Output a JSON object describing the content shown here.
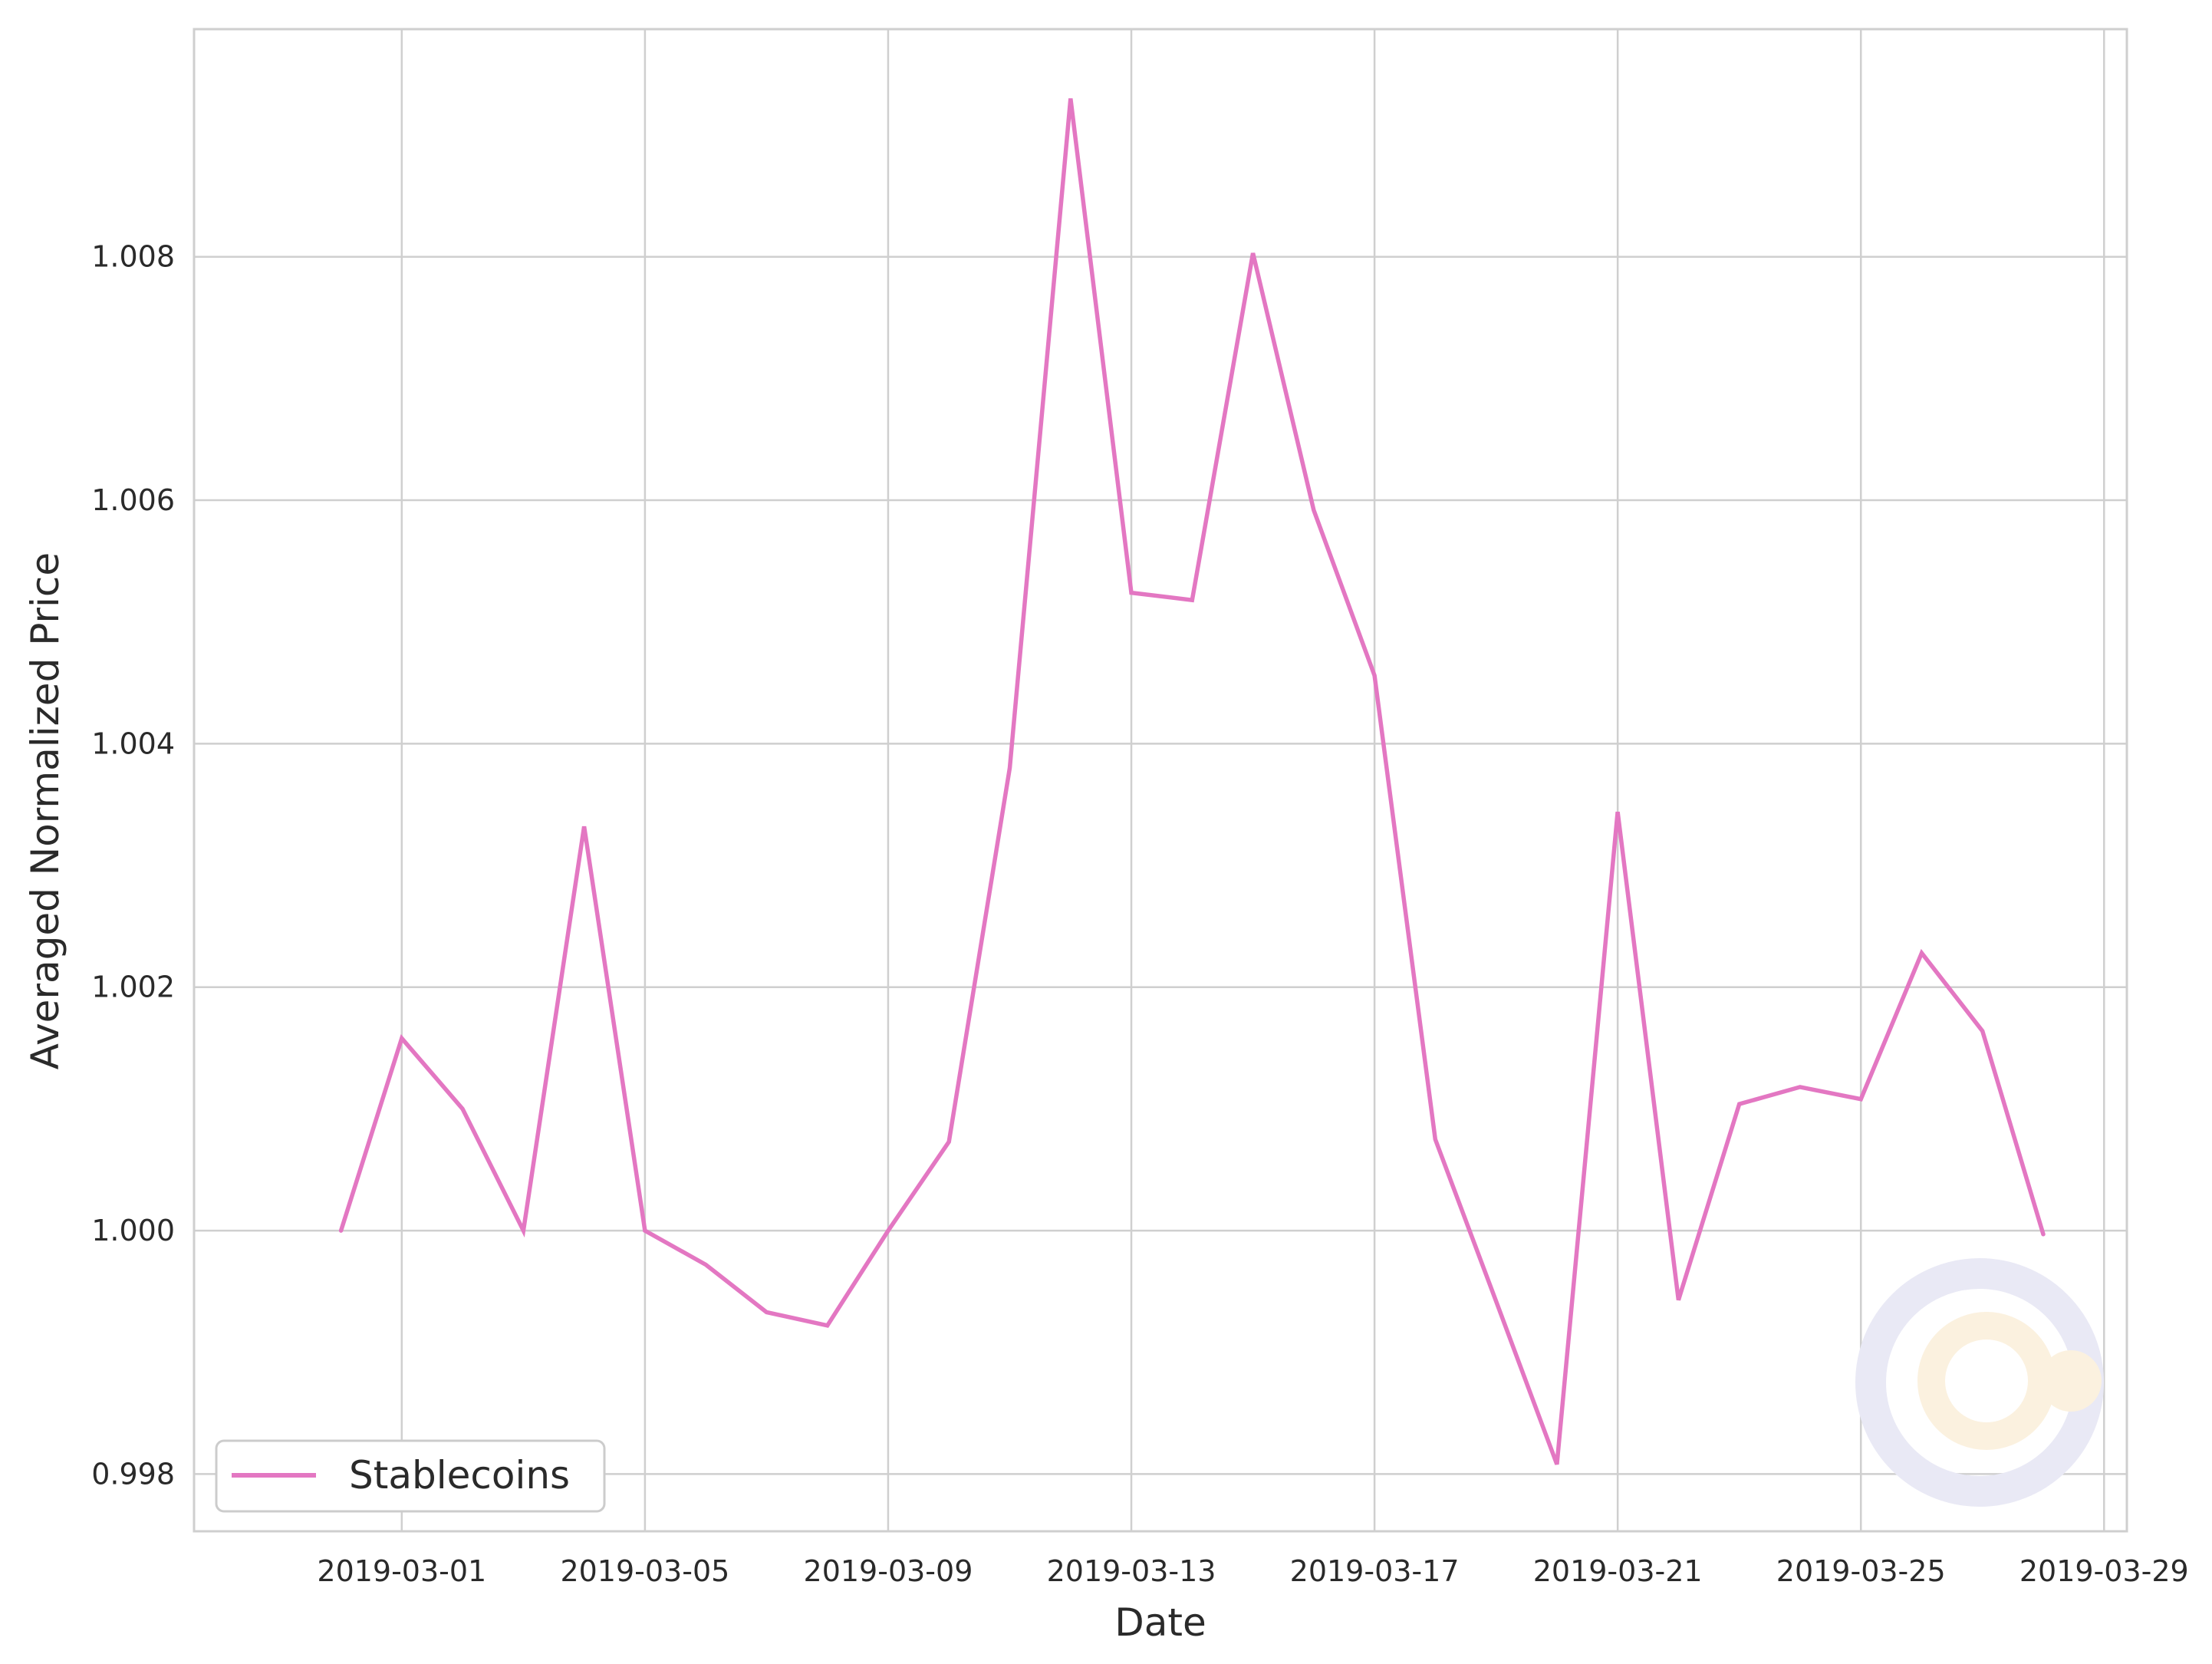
{
  "chart_data": {
    "type": "line",
    "xlabel": "Date",
    "ylabel": "Averaged Normalized Price",
    "x_ticks": [
      "2019-03-01",
      "2019-03-05",
      "2019-03-09",
      "2019-03-13",
      "2019-03-17",
      "2019-03-21",
      "2019-03-25",
      "2019-03-29"
    ],
    "y_ticks": [
      "0.998",
      "1.000",
      "1.002",
      "1.004",
      "1.006",
      "1.008"
    ],
    "xlim": [
      "2019-02-25T14:00",
      "2019-03-29T09:00"
    ],
    "ylim": [
      0.99753,
      1.00987
    ],
    "grid": true,
    "legend_position": "lower-left",
    "series": [
      {
        "name": "Stablecoins",
        "color": "#e377c2",
        "x": [
          "2019-02-28",
          "2019-03-01",
          "2019-03-02",
          "2019-03-03",
          "2019-03-04",
          "2019-03-05",
          "2019-03-06",
          "2019-03-07",
          "2019-03-08",
          "2019-03-09",
          "2019-03-10",
          "2019-03-11",
          "2019-03-12",
          "2019-03-13",
          "2019-03-14",
          "2019-03-15",
          "2019-03-16",
          "2019-03-17",
          "2019-03-18",
          "2019-03-19",
          "2019-03-20",
          "2019-03-21",
          "2019-03-22",
          "2019-03-23",
          "2019-03-24",
          "2019-03-25",
          "2019-03-26",
          "2019-03-27",
          "2019-03-28"
        ],
        "values": [
          1.0,
          1.00158,
          1.001,
          1.0,
          1.00332,
          1.0,
          0.99972,
          0.99933,
          0.99922,
          1.0,
          1.00073,
          1.0038,
          1.0093,
          1.00524,
          1.00518,
          1.00803,
          1.00592,
          1.00456,
          1.00075,
          0.99942,
          0.99808,
          1.00344,
          0.99943,
          1.00104,
          1.00118,
          1.00108,
          1.00228,
          1.00164,
          0.99997
        ]
      }
    ]
  },
  "watermark": {
    "name": "logo-watermark",
    "colors": [
      "#e9e9f5",
      "#fbf1df"
    ]
  }
}
